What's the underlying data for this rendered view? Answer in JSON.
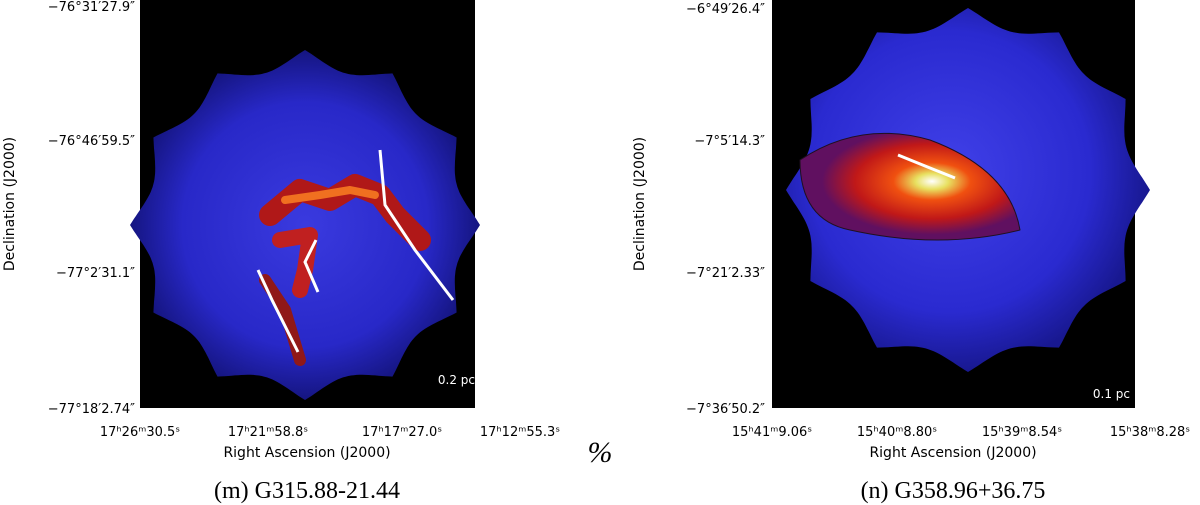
{
  "panels": [
    {
      "y_ticks": [
        "−76°31′27.9″",
        "−76°46′59.5″",
        "−77°2′31.1″",
        "−77°18′2.74″"
      ],
      "x_ticks": [
        "17ʰ26ᵐ30.5ˢ",
        "17ʰ21ᵐ58.8ˢ",
        "17ʰ17ᵐ27.0ˢ",
        "17ʰ12ᵐ55.3ˢ"
      ],
      "x_label": "Right Ascension (J2000)",
      "y_label": "Declination (J2000)",
      "scale_bar": "0.2 pc",
      "caption": "(m)  G315.88-21.44"
    },
    {
      "y_ticks": [
        "−6°49′26.4″",
        "−7°5′14.3″",
        "−7°21′2.33″",
        "−7°36′50.2″"
      ],
      "x_ticks": [
        "15ʰ41ᵐ9.06ˢ",
        "15ʰ40ᵐ8.80ˢ",
        "15ʰ39ᵐ8.54ˢ",
        "15ʰ38ᵐ8.28ˢ"
      ],
      "x_label": "Right Ascension (J2000)",
      "y_label": "Declination (J2000)",
      "scale_bar": "0.1 pc",
      "caption": "(n)  G358.96+36.75"
    }
  ],
  "stray_mark": "%"
}
